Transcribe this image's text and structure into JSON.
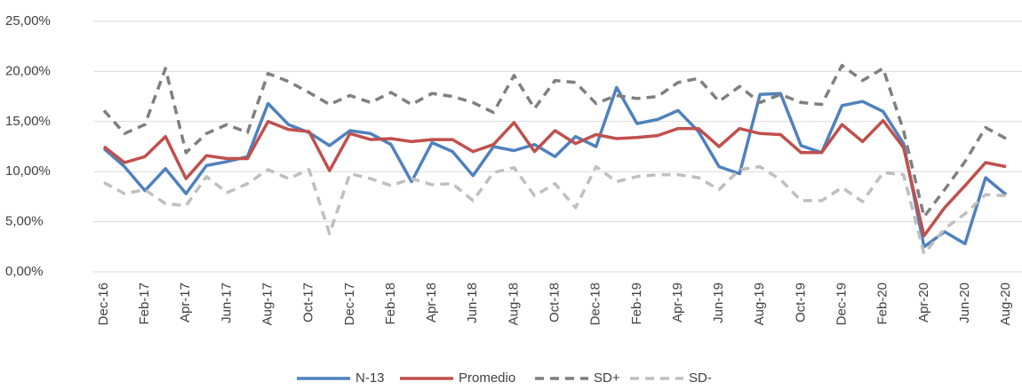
{
  "chart_data": {
    "type": "line",
    "categories": [
      "Dec-16",
      null,
      "Feb-17",
      null,
      "Apr-17",
      null,
      "Jun-17",
      null,
      "Aug-17",
      null,
      "Oct-17",
      null,
      "Dec-17",
      null,
      "Feb-18",
      null,
      "Apr-18",
      null,
      "Jun-18",
      null,
      "Aug-18",
      null,
      "Oct-18",
      null,
      "Dec-18",
      null,
      "Feb-19",
      null,
      "Apr-19",
      null,
      "Jun-19",
      null,
      "Aug-19",
      null,
      "Oct-19",
      null,
      "Dec-19",
      null,
      "Feb-20",
      null,
      "Apr-20",
      null,
      "Jun-20",
      null,
      "Aug-20"
    ],
    "series": [
      {
        "name": "N-13",
        "color": "#4f81bd",
        "dash": "solid",
        "values": [
          12.3,
          10.5,
          8.1,
          10.3,
          7.8,
          10.6,
          11.0,
          11.5,
          16.8,
          14.7,
          13.9,
          12.6,
          14.1,
          13.8,
          12.7,
          9.0,
          12.9,
          12.0,
          9.6,
          12.5,
          12.1,
          12.7,
          11.5,
          13.5,
          12.5,
          18.4,
          14.8,
          15.2,
          16.1,
          14.0,
          10.5,
          9.8,
          17.7,
          17.8,
          12.6,
          11.9,
          16.6,
          17.0,
          16.0,
          12.8,
          2.5,
          4.0,
          2.8,
          9.4,
          7.7
        ]
      },
      {
        "name": "Promedio",
        "color": "#c0504d",
        "dash": "solid",
        "values": [
          12.5,
          10.9,
          11.5,
          13.5,
          9.3,
          11.6,
          11.3,
          11.3,
          15.0,
          14.2,
          14.0,
          10.1,
          13.8,
          13.2,
          13.3,
          13.0,
          13.2,
          13.2,
          12.0,
          12.7,
          14.9,
          12.0,
          14.1,
          12.8,
          13.7,
          13.3,
          13.4,
          13.6,
          14.3,
          14.3,
          12.5,
          14.3,
          13.8,
          13.7,
          11.9,
          11.9,
          14.7,
          13.0,
          15.1,
          12.4,
          3.6,
          6.4,
          8.6,
          10.9,
          10.5
        ]
      },
      {
        "name": "SD+",
        "color": "#7f7f7f",
        "dash": "dashed",
        "values": [
          16.1,
          13.8,
          14.7,
          20.3,
          11.9,
          13.8,
          14.7,
          13.9,
          19.8,
          19.0,
          17.9,
          16.7,
          17.6,
          16.9,
          17.9,
          16.7,
          17.8,
          17.5,
          16.9,
          15.9,
          19.6,
          16.3,
          19.1,
          18.9,
          16.8,
          17.6,
          17.3,
          17.5,
          18.9,
          19.3,
          17.0,
          18.5,
          16.9,
          17.7,
          16.9,
          16.7,
          20.6,
          19.1,
          20.3,
          14.1,
          5.5,
          8.2,
          11.0,
          14.4,
          13.3
        ]
      },
      {
        "name": "SD-",
        "color": "#bfbfbf",
        "dash": "dashed",
        "values": [
          8.9,
          7.8,
          8.2,
          6.8,
          6.6,
          9.5,
          7.9,
          8.8,
          10.2,
          9.3,
          10.2,
          3.8,
          9.8,
          9.3,
          8.6,
          9.3,
          8.7,
          8.8,
          7.1,
          9.9,
          10.4,
          7.6,
          8.8,
          6.4,
          10.5,
          9.0,
          9.5,
          9.7,
          9.7,
          9.4,
          8.2,
          10.2,
          10.5,
          9.2,
          7.1,
          7.1,
          8.4,
          7.0,
          9.9,
          9.7,
          1.8,
          4.3,
          5.8,
          7.7,
          7.6
        ]
      }
    ],
    "ylim": [
      0,
      25
    ],
    "yticks": [
      {
        "value": 0,
        "label": "0,00%"
      },
      {
        "value": 5,
        "label": "5,00%"
      },
      {
        "value": 10,
        "label": "10,00%"
      },
      {
        "value": 15,
        "label": "15,00%"
      },
      {
        "value": 20,
        "label": "20,00%"
      },
      {
        "value": 25,
        "label": "25,00%"
      }
    ],
    "grid": true,
    "legend": "bottom"
  }
}
